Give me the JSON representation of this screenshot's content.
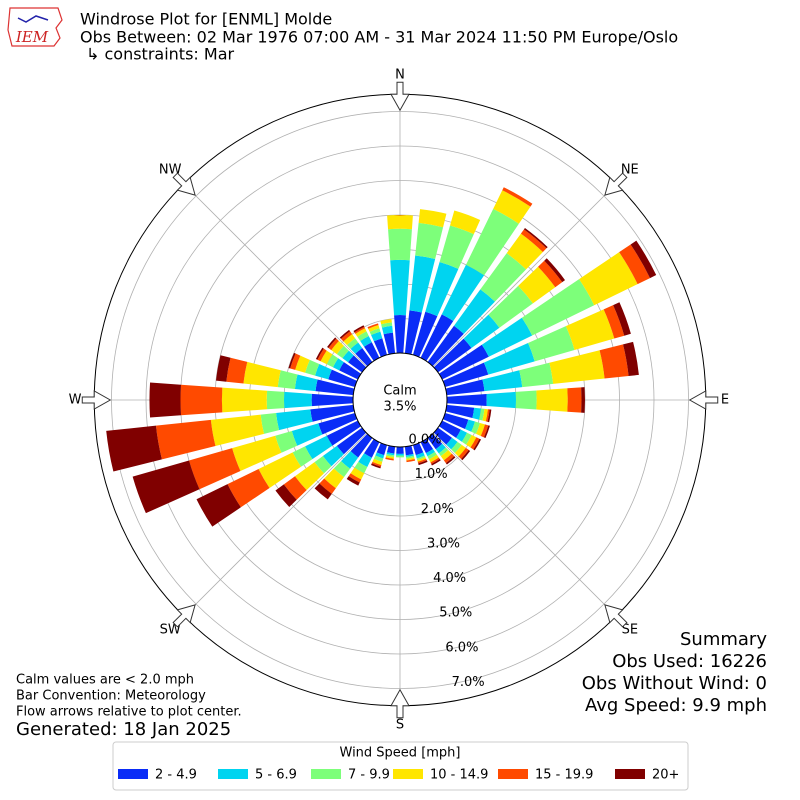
{
  "chart_data": {
    "type": "windrose",
    "title": "Windrose Plot for [ENML] Molde",
    "subtitle": "Obs Between: 02 Mar 1976 07:00 AM - 31 Mar 2024 11:50 PM Europe/Oslo",
    "constraints": "↳ constraints: Mar",
    "logo_text": "IEM",
    "x": [
      0,
      10,
      20,
      30,
      40,
      50,
      60,
      70,
      80,
      90,
      100,
      110,
      120,
      130,
      140,
      150,
      160,
      170,
      180,
      190,
      200,
      210,
      220,
      230,
      240,
      250,
      260,
      270,
      280,
      290,
      300,
      310,
      320,
      330,
      340,
      350
    ],
    "xticks": [
      {
        "value": 0,
        "label": "N"
      },
      {
        "value": 45,
        "label": "NE"
      },
      {
        "value": 90,
        "label": "E"
      },
      {
        "value": 135,
        "label": "SE"
      },
      {
        "value": 180,
        "label": "S"
      },
      {
        "value": 225,
        "label": "SW"
      },
      {
        "value": 270,
        "label": "W"
      },
      {
        "value": 315,
        "label": "NW"
      }
    ],
    "ylim": [
      0,
      7.5
    ],
    "yticks": [
      {
        "value": 0,
        "label": "0.0%"
      },
      {
        "value": 1,
        "label": "1.0%"
      },
      {
        "value": 2,
        "label": "2.0%"
      },
      {
        "value": 3,
        "label": "3.0%"
      },
      {
        "value": 4,
        "label": "4.0%"
      },
      {
        "value": 5,
        "label": "5.0%"
      },
      {
        "value": 6,
        "label": "6.0%"
      },
      {
        "value": 7,
        "label": "7.0%"
      }
    ],
    "grid": true,
    "calm_label": "Calm",
    "calm_value": 3.5,
    "calm_value_label": "3.5%",
    "legend_title": "Wind Speed [mph]",
    "series": [
      {
        "name": "2 - 4.9",
        "color": "#0a2cf7",
        "values": [
          1.1,
          1.25,
          1.3,
          1.4,
          1.3,
          1.2,
          1.5,
          1.3,
          1.1,
          1.15,
          0.8,
          0.7,
          0.6,
          0.5,
          0.4,
          0.35,
          0.3,
          0.25,
          0.2,
          0.2,
          0.3,
          0.5,
          0.7,
          0.9,
          1.0,
          1.1,
          1.25,
          1.2,
          1.1,
          0.8,
          0.6,
          0.5,
          0.5,
          0.5,
          0.5,
          0.6
        ]
      },
      {
        "name": "5 - 6.9",
        "color": "#00d4f0",
        "values": [
          1.6,
          1.6,
          1.5,
          1.6,
          1.3,
          1.0,
          1.4,
          1.4,
          1.1,
          0.85,
          0.2,
          0.2,
          0.2,
          0.2,
          0.15,
          0.1,
          0.1,
          0.05,
          0.05,
          0.05,
          0.1,
          0.3,
          0.4,
          0.5,
          0.7,
          0.8,
          1.0,
          0.8,
          0.6,
          0.4,
          0.2,
          0.2,
          0.2,
          0.2,
          0.2,
          0.2
        ]
      },
      {
        "name": "7 - 9.9",
        "color": "#7dff7a",
        "values": [
          0.9,
          0.95,
          1.1,
          1.8,
          1.3,
          1.2,
          2.0,
          1.2,
          0.9,
          0.6,
          0.1,
          0.15,
          0.15,
          0.15,
          0.1,
          0.1,
          0.05,
          0.05,
          0.05,
          0.05,
          0.1,
          0.2,
          0.3,
          0.3,
          0.4,
          0.5,
          0.45,
          0.5,
          0.5,
          0.3,
          0.2,
          0.2,
          0.15,
          0.15,
          0.1,
          0.1
        ]
      },
      {
        "name": "10 - 14.9",
        "color": "#ffe600",
        "values": [
          0.4,
          0.4,
          0.45,
          0.6,
          0.7,
          0.8,
          1.4,
          1.2,
          1.5,
          0.9,
          0.1,
          0.15,
          0.15,
          0.15,
          0.15,
          0.1,
          0.05,
          0.05,
          0,
          0.05,
          0.1,
          0.2,
          0.4,
          0.7,
          1.1,
          1.3,
          1.45,
          1.3,
          1.0,
          0.3,
          0.2,
          0.2,
          0.15,
          0.1,
          0.1,
          0.1
        ]
      },
      {
        "name": "15 - 19.9",
        "color": "#ff4a00",
        "values": [
          0,
          0,
          0,
          0.1,
          0.15,
          0.25,
          0.4,
          0.3,
          0.7,
          0.4,
          0.05,
          0.1,
          0.1,
          0.1,
          0.1,
          0.05,
          0.05,
          0.05,
          0,
          0.05,
          0.05,
          0.1,
          0.2,
          0.4,
          1.0,
          1.3,
          1.6,
          1.2,
          0.5,
          0.15,
          0.1,
          0.1,
          0.1,
          0.05,
          0.05,
          0
        ]
      },
      {
        "name": "20+",
        "color": "#800000",
        "values": [
          0,
          0,
          0,
          0,
          0.05,
          0.1,
          0.2,
          0.2,
          0.3,
          0.1,
          0.05,
          0.05,
          0.05,
          0.05,
          0.05,
          0.05,
          0.05,
          0,
          0,
          0,
          0.05,
          0.1,
          0.2,
          0.3,
          1.0,
          1.7,
          1.45,
          0.9,
          0.3,
          0.05,
          0.05,
          0.05,
          0.05,
          0.05,
          0,
          0
        ]
      }
    ],
    "summary": [
      "Summary",
      "Obs Used: 16226",
      "Obs Without Wind: 0",
      "Avg Speed: 9.9 mph"
    ],
    "notes": [
      "Calm values are < 2.0 mph",
      "Bar Convention: Meteorology",
      "Flow arrows relative to plot center."
    ],
    "generated": "Generated: 18 Jan 2025"
  }
}
